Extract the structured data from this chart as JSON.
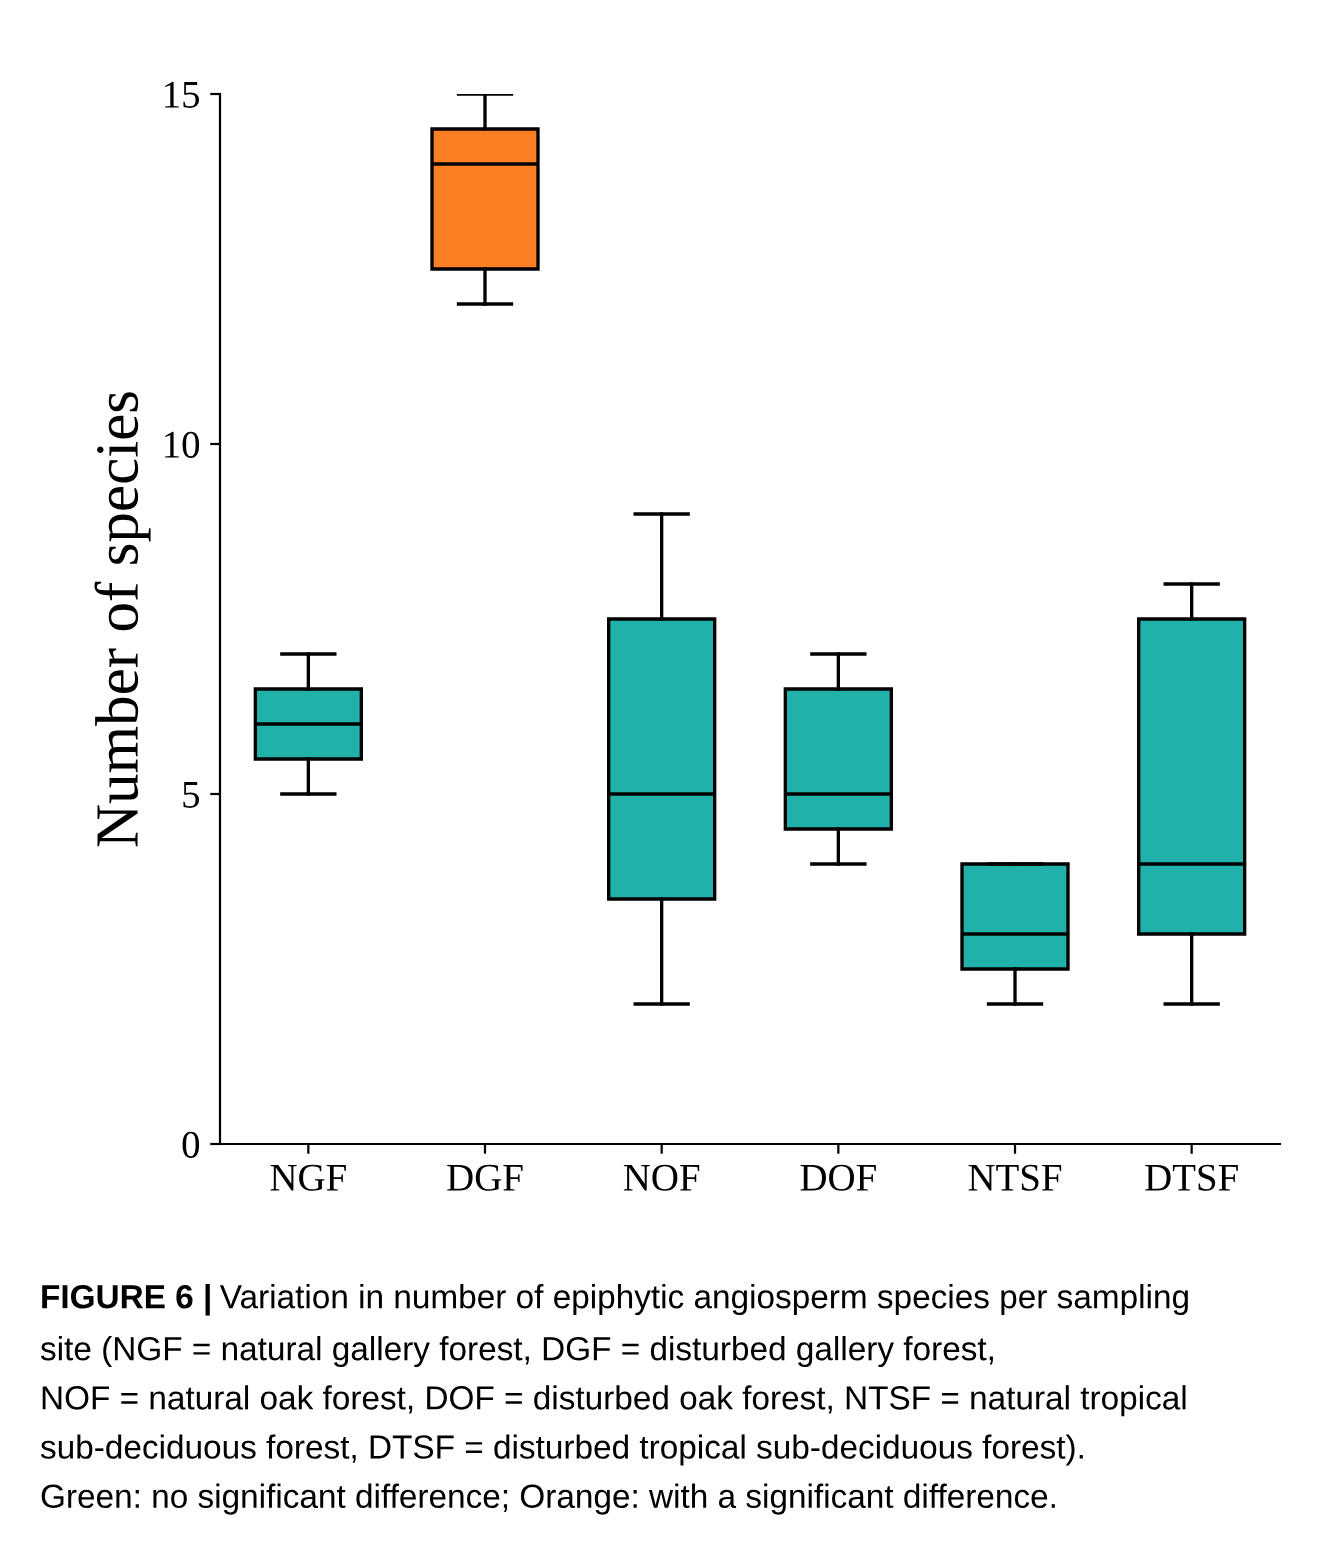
{
  "chart_data": {
    "type": "box",
    "ylabel": "Number of species",
    "categories": [
      "NGF",
      "DGF",
      "NOF",
      "DOF",
      "NTSF",
      "DTSF"
    ],
    "colors": [
      "#20b2aa",
      "#fd7f23",
      "#20b2aa",
      "#20b2aa",
      "#20b2aa",
      "#20b2aa"
    ],
    "boxes": [
      {
        "low": 5,
        "q1": 5.5,
        "median": 6,
        "q3": 6.5,
        "high": 7
      },
      {
        "low": 12,
        "q1": 12.5,
        "median": 14,
        "q3": 14.5,
        "high": 15
      },
      {
        "low": 2,
        "q1": 3.5,
        "median": 5,
        "q3": 7.5,
        "high": 9
      },
      {
        "low": 4,
        "q1": 4.5,
        "median": 5,
        "q3": 6.5,
        "high": 7
      },
      {
        "low": 2,
        "q1": 2.5,
        "median": 3,
        "q3": 4,
        "high": 4
      },
      {
        "low": 2,
        "q1": 3,
        "median": 4,
        "q3": 7.5,
        "high": 8
      }
    ],
    "ylim": [
      0,
      15
    ],
    "yticks": [
      0,
      5,
      10,
      15
    ],
    "grid": false,
    "legend": false,
    "annotations": [
      "FIGURE 6 |",
      "Variation in number of epiphytic angiosperm species per sampling\nsite (NGF = natural gallery forest, DGF = disturbed gallery forest,\nNOF = natural oak forest, DOF = disturbed oak forest, NTSF = natural tropical\nsub-deciduous forest, DTSF = disturbed tropical sub-deciduous forest).\nGreen: no significant difference; Orange: with a significant difference."
    ]
  }
}
